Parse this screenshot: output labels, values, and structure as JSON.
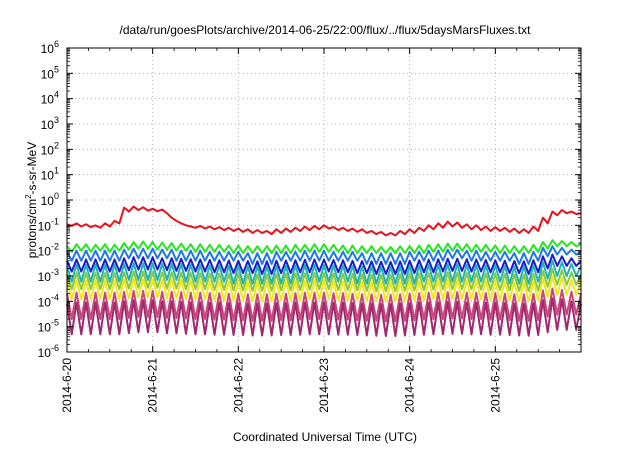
{
  "chart_data": {
    "type": "line",
    "title": "/data/run/goesPlots/archive/2014-06-25/22:00/flux/../flux/5daysMarsFluxes.txt",
    "xlabel": "Coordinated Universal Time (UTC)",
    "ylabel": {
      "prefix": "protons/cm",
      "superscript": "2",
      "suffix": "-s-sr-MeV"
    },
    "yscale": "log",
    "ylim": [
      1e-06,
      1000000.0
    ],
    "y_ticks": [
      {
        "base": "10",
        "exp": "-6",
        "value": 1e-06
      },
      {
        "base": "10",
        "exp": "-5",
        "value": 1e-05
      },
      {
        "base": "10",
        "exp": "-4",
        "value": 0.0001
      },
      {
        "base": "10",
        "exp": "-3",
        "value": 0.001
      },
      {
        "base": "10",
        "exp": "-2",
        "value": 0.01
      },
      {
        "base": "10",
        "exp": "-1",
        "value": 0.1
      },
      {
        "base": "10",
        "exp": "0",
        "value": 1
      },
      {
        "base": "10",
        "exp": "1",
        "value": 10
      },
      {
        "base": "10",
        "exp": "2",
        "value": 100
      },
      {
        "base": "10",
        "exp": "3",
        "value": 1000
      },
      {
        "base": "10",
        "exp": "4",
        "value": 10000
      },
      {
        "base": "10",
        "exp": "5",
        "value": 100000
      },
      {
        "base": "10",
        "exp": "6",
        "value": 1000000
      }
    ],
    "xlim": [
      "2014-06-20",
      "2014-06-26"
    ],
    "x_ticks": [
      "2014-6-20",
      "2014-6-21",
      "2014-6-22",
      "2014-6-23",
      "2014-6-24",
      "2014-6-25"
    ],
    "grid": true,
    "series": [
      {
        "color": "#e8121c",
        "values": [
          0.11,
          0.095,
          0.12,
          0.09,
          0.11,
          0.085,
          0.1,
          0.08,
          0.12,
          0.09,
          0.15,
          0.12,
          0.5,
          0.35,
          0.55,
          0.4,
          0.52,
          0.38,
          0.45,
          0.36,
          0.42,
          0.3,
          0.2,
          0.15,
          0.12,
          0.1,
          0.09,
          0.08,
          0.095,
          0.075,
          0.09,
          0.07,
          0.085,
          0.065,
          0.08,
          0.06,
          0.075,
          0.055,
          0.07,
          0.05,
          0.065,
          0.05,
          0.06,
          0.045,
          0.07,
          0.05,
          0.075,
          0.055,
          0.08,
          0.06,
          0.09,
          0.065,
          0.095,
          0.07,
          0.1,
          0.075,
          0.085,
          0.065,
          0.08,
          0.06,
          0.075,
          0.055,
          0.07,
          0.05,
          0.06,
          0.045,
          0.055,
          0.04,
          0.05,
          0.04,
          0.06,
          0.045,
          0.07,
          0.05,
          0.08,
          0.06,
          0.1,
          0.07,
          0.12,
          0.08,
          0.14,
          0.09,
          0.13,
          0.08,
          0.11,
          0.07,
          0.1,
          0.065,
          0.09,
          0.06,
          0.085,
          0.06,
          0.08,
          0.055,
          0.075,
          0.05,
          0.07,
          0.05,
          0.09,
          0.06,
          0.2,
          0.12,
          0.35,
          0.25,
          0.4,
          0.3,
          0.35,
          0.28,
          0.3
        ]
      },
      {
        "color": "#22e81c",
        "values": [
          0.015,
          0.009,
          0.018,
          0.01,
          0.018,
          0.009,
          0.017,
          0.01,
          0.018,
          0.009,
          0.017,
          0.01,
          0.02,
          0.011,
          0.022,
          0.012,
          0.023,
          0.012,
          0.022,
          0.011,
          0.021,
          0.011,
          0.02,
          0.01,
          0.019,
          0.01,
          0.018,
          0.009,
          0.018,
          0.009,
          0.017,
          0.009,
          0.017,
          0.009,
          0.016,
          0.008,
          0.016,
          0.008,
          0.015,
          0.008,
          0.015,
          0.008,
          0.015,
          0.008,
          0.016,
          0.008,
          0.016,
          0.008,
          0.017,
          0.009,
          0.017,
          0.009,
          0.018,
          0.009,
          0.018,
          0.009,
          0.017,
          0.009,
          0.016,
          0.008,
          0.016,
          0.008,
          0.015,
          0.008,
          0.015,
          0.008,
          0.014,
          0.008,
          0.014,
          0.008,
          0.015,
          0.008,
          0.015,
          0.008,
          0.016,
          0.008,
          0.017,
          0.009,
          0.018,
          0.009,
          0.019,
          0.01,
          0.019,
          0.01,
          0.018,
          0.009,
          0.017,
          0.009,
          0.017,
          0.009,
          0.016,
          0.008,
          0.016,
          0.008,
          0.015,
          0.008,
          0.015,
          0.008,
          0.017,
          0.009,
          0.022,
          0.012,
          0.026,
          0.015,
          0.024,
          0.015,
          0.022,
          0.015,
          0.018
        ]
      },
      {
        "color": "#1c78e8",
        "values": [
          0.009,
          0.004,
          0.01,
          0.004,
          0.01,
          0.004,
          0.01,
          0.004,
          0.01,
          0.004,
          0.01,
          0.004,
          0.011,
          0.005,
          0.012,
          0.005,
          0.012,
          0.005,
          0.012,
          0.005,
          0.011,
          0.005,
          0.011,
          0.004,
          0.01,
          0.004,
          0.01,
          0.004,
          0.01,
          0.004,
          0.009,
          0.004,
          0.009,
          0.004,
          0.009,
          0.004,
          0.009,
          0.004,
          0.008,
          0.003,
          0.008,
          0.003,
          0.008,
          0.003,
          0.009,
          0.004,
          0.009,
          0.004,
          0.009,
          0.004,
          0.01,
          0.004,
          0.01,
          0.004,
          0.01,
          0.004,
          0.009,
          0.004,
          0.009,
          0.004,
          0.009,
          0.004,
          0.008,
          0.003,
          0.008,
          0.003,
          0.008,
          0.003,
          0.008,
          0.003,
          0.008,
          0.003,
          0.009,
          0.004,
          0.009,
          0.004,
          0.01,
          0.004,
          0.01,
          0.004,
          0.011,
          0.005,
          0.011,
          0.005,
          0.01,
          0.004,
          0.01,
          0.004,
          0.009,
          0.004,
          0.009,
          0.004,
          0.009,
          0.004,
          0.008,
          0.003,
          0.008,
          0.003,
          0.009,
          0.004,
          0.013,
          0.006,
          0.015,
          0.007,
          0.013,
          0.007,
          0.011,
          0.007,
          0.009
        ]
      },
      {
        "color": "#1c1cc8",
        "values": [
          0.004,
          0.0015,
          0.0045,
          0.0015,
          0.0045,
          0.0015,
          0.0045,
          0.0015,
          0.0045,
          0.0015,
          0.0045,
          0.0015,
          0.005,
          0.0017,
          0.0055,
          0.0018,
          0.0055,
          0.0018,
          0.0055,
          0.0018,
          0.005,
          0.0017,
          0.005,
          0.0016,
          0.0048,
          0.0016,
          0.0046,
          0.0015,
          0.0045,
          0.0015,
          0.0043,
          0.0014,
          0.0042,
          0.0014,
          0.0041,
          0.0013,
          0.004,
          0.0013,
          0.0039,
          0.0013,
          0.0038,
          0.0012,
          0.0038,
          0.0012,
          0.004,
          0.0013,
          0.0041,
          0.0013,
          0.0042,
          0.0014,
          0.0044,
          0.0014,
          0.0045,
          0.0015,
          0.0045,
          0.0015,
          0.0043,
          0.0014,
          0.0042,
          0.0014,
          0.004,
          0.0013,
          0.0039,
          0.0013,
          0.0038,
          0.0012,
          0.0037,
          0.0012,
          0.0036,
          0.0012,
          0.0038,
          0.0012,
          0.004,
          0.0013,
          0.0042,
          0.0014,
          0.0044,
          0.0014,
          0.0046,
          0.0015,
          0.0048,
          0.0016,
          0.0048,
          0.0016,
          0.0046,
          0.0015,
          0.0045,
          0.0015,
          0.0043,
          0.0014,
          0.0042,
          0.0014,
          0.004,
          0.0013,
          0.0039,
          0.0013,
          0.0038,
          0.0012,
          0.0042,
          0.0014,
          0.006,
          0.002,
          0.007,
          0.0025,
          0.006,
          0.0025,
          0.005,
          0.0025,
          0.004
        ]
      },
      {
        "color": "#1cb4b4",
        "values": [
          0.0025,
          0.0006,
          0.0028,
          0.0006,
          0.0028,
          0.0006,
          0.0028,
          0.0006,
          0.0028,
          0.0006,
          0.0028,
          0.0006,
          0.003,
          0.0007,
          0.0032,
          0.0007,
          0.0032,
          0.0007,
          0.0032,
          0.0007,
          0.003,
          0.0007,
          0.003,
          0.0007,
          0.0029,
          0.0006,
          0.0028,
          0.0006,
          0.0027,
          0.0006,
          0.0026,
          0.0006,
          0.0026,
          0.0006,
          0.0025,
          0.0005,
          0.0025,
          0.0005,
          0.0024,
          0.0005,
          0.0024,
          0.0005,
          0.0024,
          0.0005,
          0.0025,
          0.0005,
          0.0025,
          0.0005,
          0.0026,
          0.0006,
          0.0027,
          0.0006,
          0.0027,
          0.0006,
          0.0027,
          0.0006,
          0.0026,
          0.0006,
          0.0026,
          0.0006,
          0.0025,
          0.0005,
          0.0024,
          0.0005,
          0.0024,
          0.0005,
          0.0023,
          0.0005,
          0.0023,
          0.0005,
          0.0024,
          0.0005,
          0.0025,
          0.0005,
          0.0026,
          0.0006,
          0.0027,
          0.0006,
          0.0028,
          0.0006,
          0.0029,
          0.0006,
          0.0029,
          0.0006,
          0.0028,
          0.0006,
          0.0027,
          0.0006,
          0.0026,
          0.0006,
          0.0026,
          0.0006,
          0.0025,
          0.0005,
          0.0024,
          0.0005,
          0.0024,
          0.0005,
          0.0026,
          0.0006,
          0.0035,
          0.0008,
          0.004,
          0.001,
          0.0035,
          0.001,
          0.003,
          0.001,
          0.0025
        ]
      },
      {
        "color": "#8cc83c",
        "values": [
          0.0012,
          0.0003,
          0.0013,
          0.0003,
          0.0013,
          0.0003,
          0.0013,
          0.0003,
          0.0013,
          0.0003,
          0.0013,
          0.0003,
          0.0014,
          0.00032,
          0.0015,
          0.00034,
          0.0015,
          0.00034,
          0.0015,
          0.00034,
          0.0014,
          0.00032,
          0.0014,
          0.00032,
          0.00135,
          0.0003,
          0.0013,
          0.0003,
          0.00128,
          0.0003,
          0.00125,
          0.00028,
          0.00122,
          0.00028,
          0.0012,
          0.00027,
          0.0012,
          0.00027,
          0.00115,
          0.00026,
          0.00115,
          0.00026,
          0.00115,
          0.00026,
          0.0012,
          0.00027,
          0.0012,
          0.00027,
          0.00125,
          0.00028,
          0.00128,
          0.00029,
          0.0013,
          0.0003,
          0.0013,
          0.0003,
          0.00125,
          0.00028,
          0.00122,
          0.00028,
          0.0012,
          0.00027,
          0.00115,
          0.00026,
          0.00112,
          0.00025,
          0.0011,
          0.00025,
          0.0011,
          0.00025,
          0.00115,
          0.00026,
          0.0012,
          0.00027,
          0.00125,
          0.00028,
          0.00128,
          0.00029,
          0.0013,
          0.0003,
          0.00135,
          0.0003,
          0.00135,
          0.0003,
          0.0013,
          0.0003,
          0.00128,
          0.00029,
          0.00125,
          0.00028,
          0.00122,
          0.00028,
          0.0012,
          0.00027,
          0.00115,
          0.00026,
          0.00112,
          0.00025,
          0.0012,
          0.00027,
          0.0016,
          0.00038,
          0.0019,
          0.00045,
          0.0017,
          0.00045,
          0.0014,
          0.00045,
          0.0012
        ]
      },
      {
        "color": "#f0e61c",
        "values": [
          0.0006,
          0.00012,
          0.00065,
          0.00012,
          0.00065,
          0.00012,
          0.00065,
          0.00012,
          0.00065,
          0.00012,
          0.00065,
          0.00012,
          0.0007,
          0.00013,
          0.00075,
          0.00014,
          0.00075,
          0.00014,
          0.00075,
          0.00014,
          0.0007,
          0.00013,
          0.0007,
          0.00013,
          0.00068,
          0.00012,
          0.00065,
          0.00012,
          0.00064,
          0.00012,
          0.00062,
          0.00011,
          0.00061,
          0.00011,
          0.0006,
          0.00011,
          0.0006,
          0.00011,
          0.00058,
          0.0001,
          0.00058,
          0.0001,
          0.00058,
          0.0001,
          0.0006,
          0.00011,
          0.0006,
          0.00011,
          0.00062,
          0.00011,
          0.00064,
          0.00012,
          0.00065,
          0.00012,
          0.00065,
          0.00012,
          0.00062,
          0.00011,
          0.00061,
          0.00011,
          0.0006,
          0.00011,
          0.00058,
          0.0001,
          0.00056,
          0.0001,
          0.00055,
          0.0001,
          0.00055,
          0.0001,
          0.00058,
          0.0001,
          0.0006,
          0.00011,
          0.00062,
          0.00011,
          0.00064,
          0.00012,
          0.00065,
          0.00012,
          0.00068,
          0.00012,
          0.00068,
          0.00012,
          0.00065,
          0.00012,
          0.00064,
          0.00012,
          0.00062,
          0.00011,
          0.00061,
          0.00011,
          0.0006,
          0.00011,
          0.00058,
          0.0001,
          0.00056,
          0.0001,
          0.0006,
          0.00011,
          0.0008,
          0.00015,
          0.00095,
          0.00018,
          0.00085,
          0.00018,
          0.0007,
          0.00018,
          0.0006
        ]
      },
      {
        "color": "#c84678",
        "values": [
          0.0002,
          2e-05,
          0.00022,
          2e-05,
          0.00022,
          2e-05,
          0.00022,
          2e-05,
          0.00022,
          2e-05,
          0.00022,
          2e-05,
          0.00024,
          2.2e-05,
          0.00026,
          2.4e-05,
          0.00026,
          2.4e-05,
          0.00026,
          2.4e-05,
          0.00024,
          2.2e-05,
          0.00024,
          2.2e-05,
          0.00023,
          2.1e-05,
          0.00022,
          2e-05,
          0.00022,
          2e-05,
          0.00021,
          1.9e-05,
          0.00021,
          1.9e-05,
          0.0002,
          1.8e-05,
          0.0002,
          1.8e-05,
          0.00019,
          1.7e-05,
          0.00019,
          1.7e-05,
          0.00019,
          1.7e-05,
          0.0002,
          1.8e-05,
          0.0002,
          1.8e-05,
          0.00021,
          1.9e-05,
          0.00022,
          2e-05,
          0.00022,
          2e-05,
          0.00022,
          2e-05,
          0.00021,
          1.9e-05,
          0.00021,
          1.9e-05,
          0.0002,
          1.8e-05,
          0.00019,
          1.7e-05,
          0.00019,
          1.7e-05,
          0.00018,
          1.6e-05,
          0.00018,
          1.6e-05,
          0.00019,
          1.7e-05,
          0.0002,
          1.8e-05,
          0.00021,
          1.9e-05,
          0.00022,
          2e-05,
          0.00022,
          2e-05,
          0.00023,
          2.1e-05,
          0.00023,
          2.1e-05,
          0.00022,
          2e-05,
          0.00022,
          2e-05,
          0.00021,
          1.9e-05,
          0.00021,
          1.9e-05,
          0.0002,
          1.8e-05,
          0.00019,
          1.7e-05,
          0.00019,
          1.7e-05,
          0.0002,
          1.8e-05,
          0.00027,
          2.5e-05,
          0.00032,
          3e-05,
          0.00028,
          3e-05,
          0.00024,
          3e-05,
          0.0002
        ]
      },
      {
        "color": "#a0286e",
        "values": [
          8e-05,
          5e-06,
          9e-05,
          5e-06,
          9e-05,
          5e-06,
          9e-05,
          5e-06,
          9e-05,
          5e-06,
          9e-05,
          5e-06,
          0.0001,
          5.5e-06,
          0.00011,
          6e-06,
          0.00011,
          6e-06,
          0.00011,
          6e-06,
          0.0001,
          5.5e-06,
          0.0001,
          5.5e-06,
          9.5e-05,
          5.2e-06,
          9e-05,
          5e-06,
          9e-05,
          5e-06,
          8.8e-05,
          4.8e-06,
          8.7e-05,
          4.8e-06,
          8.5e-05,
          4.7e-06,
          8.5e-05,
          4.7e-06,
          8.2e-05,
          4.5e-06,
          8.2e-05,
          4.5e-06,
          8.2e-05,
          4.5e-06,
          8.5e-05,
          4.7e-06,
          8.5e-05,
          4.7e-06,
          8.8e-05,
          4.8e-06,
          9e-05,
          5e-06,
          9e-05,
          5e-06,
          9e-05,
          5e-06,
          8.8e-05,
          4.8e-06,
          8.7e-05,
          4.8e-06,
          8.5e-05,
          4.7e-06,
          8.2e-05,
          4.5e-06,
          8e-05,
          4.4e-06,
          7.8e-05,
          4.3e-06,
          7.8e-05,
          4.3e-06,
          8.2e-05,
          4.5e-06,
          8.5e-05,
          4.7e-06,
          8.8e-05,
          4.8e-06,
          9e-05,
          5e-06,
          9e-05,
          5e-06,
          9.5e-05,
          5.2e-06,
          9.5e-05,
          5.2e-06,
          9e-05,
          5e-06,
          9e-05,
          5e-06,
          8.8e-05,
          4.8e-06,
          8.7e-05,
          4.8e-06,
          8.5e-05,
          4.7e-06,
          8.2e-05,
          4.5e-06,
          8e-05,
          4.4e-06,
          8.5e-05,
          4.7e-06,
          0.00011,
          6e-06,
          0.00013,
          7.5e-06,
          0.00012,
          7.5e-06,
          0.0001,
          7.5e-06,
          8e-05
        ]
      }
    ]
  }
}
